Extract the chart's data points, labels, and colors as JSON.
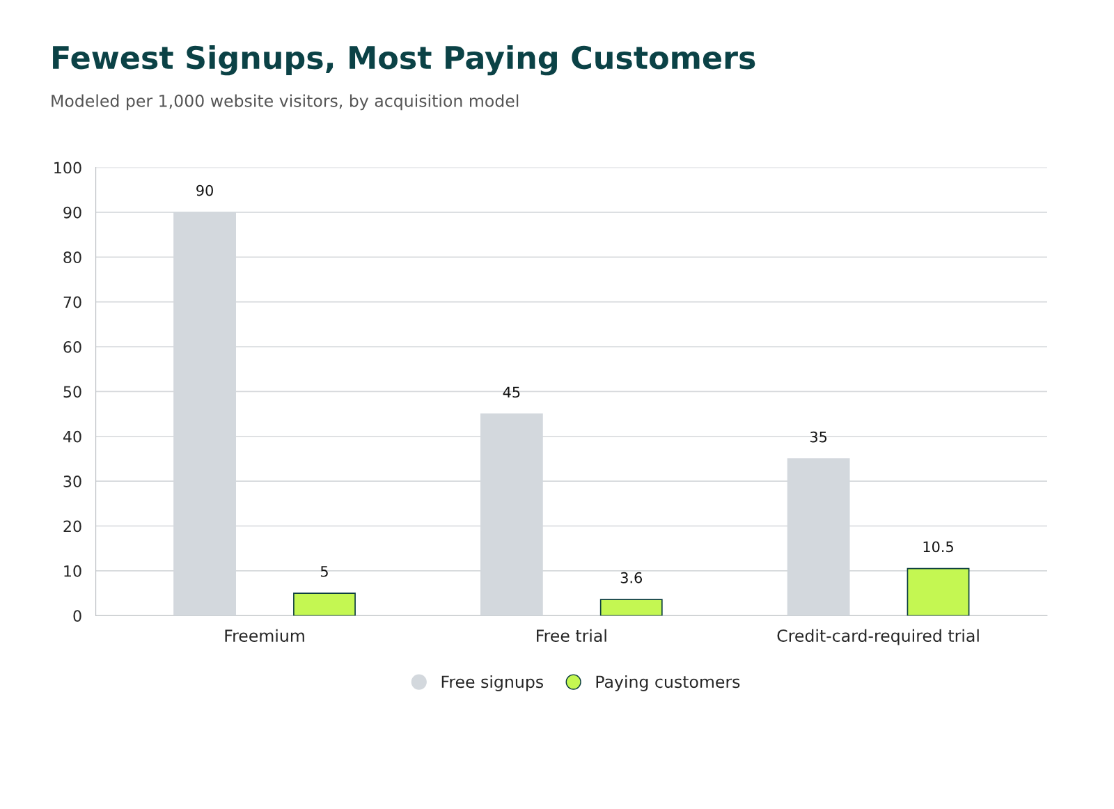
{
  "chart_data": {
    "type": "bar",
    "title": "Fewest Signups, Most Paying Customers",
    "subtitle": "Modeled per 1,000 website visitors, by acquisition model",
    "categories": [
      "Freemium",
      "Free trial",
      "Credit-card-required trial"
    ],
    "series": [
      {
        "name": "Free signups",
        "color": "#d3d8dd",
        "values": [
          90,
          45,
          35
        ]
      },
      {
        "name": "Paying customers",
        "color": "#c4f752",
        "values": [
          5,
          3.6,
          10.5
        ]
      }
    ],
    "ylim": [
      0,
      100
    ],
    "yticks": [
      0,
      10,
      20,
      30,
      40,
      50,
      60,
      70,
      80,
      90,
      100
    ],
    "grid": "y",
    "legend": "bottom",
    "data_labels": true
  }
}
